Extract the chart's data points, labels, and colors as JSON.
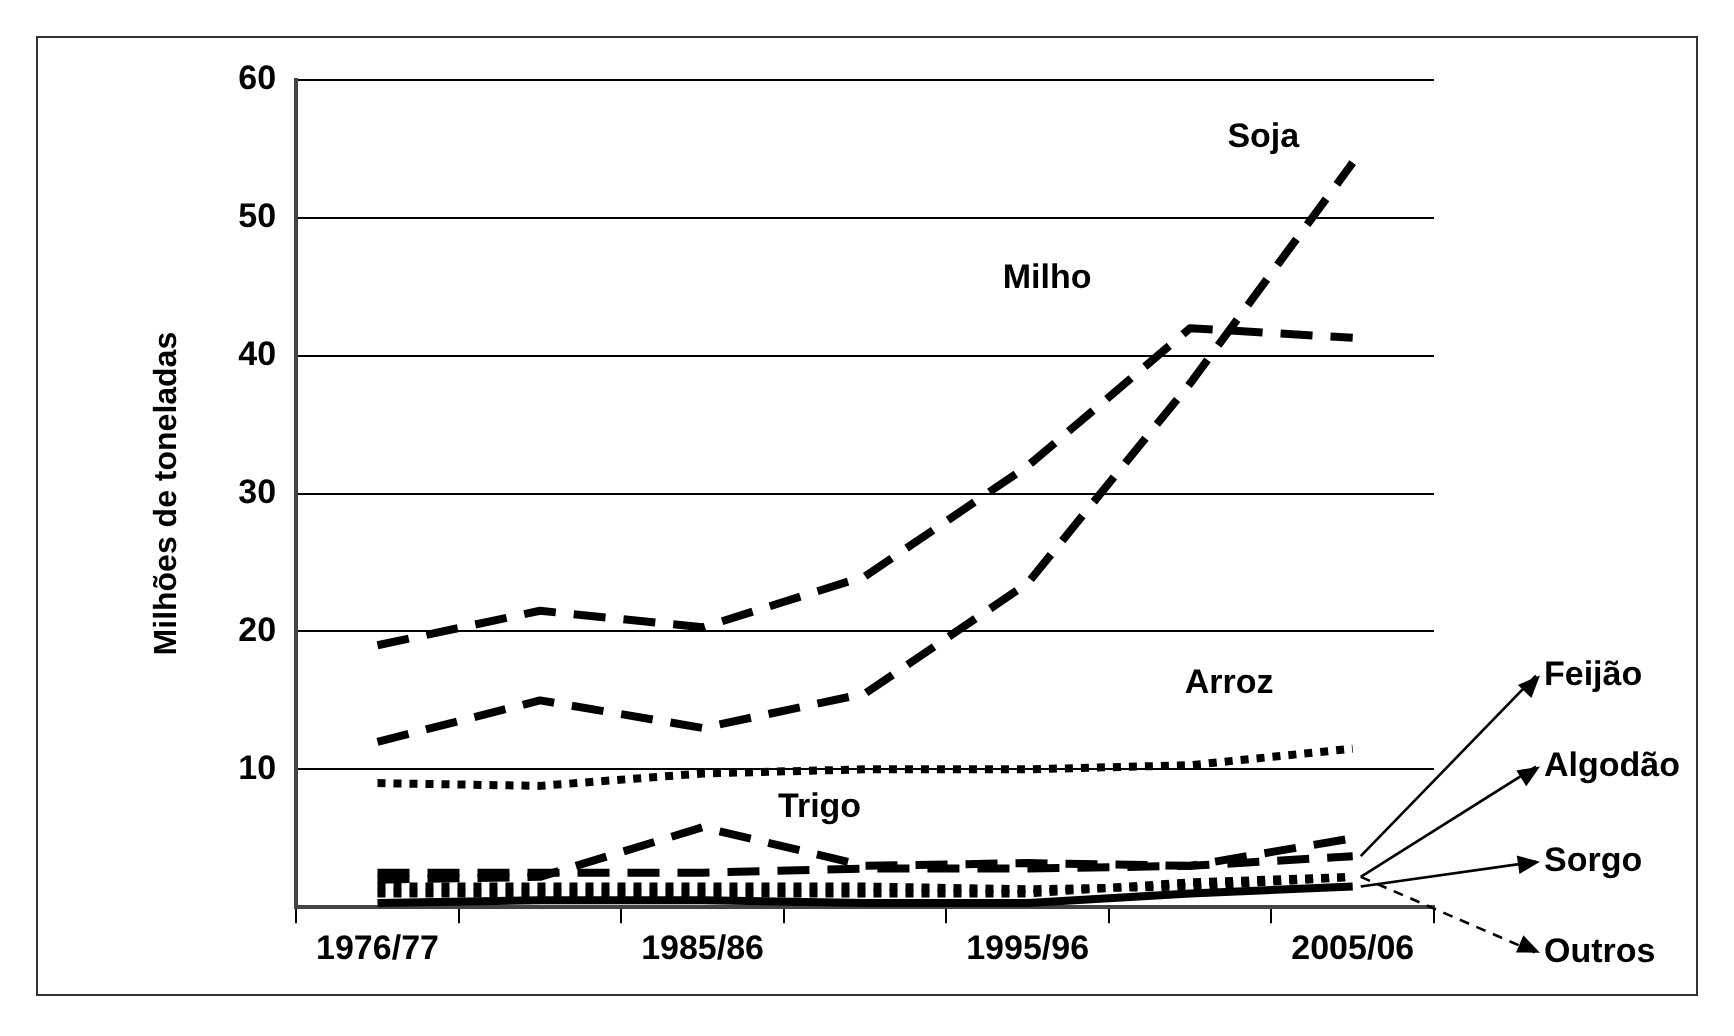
{
  "chart_data": {
    "type": "line",
    "ylabel": "Milhões de toneladas",
    "categories": [
      "1976/77",
      null,
      "1985/86",
      null,
      "1995/96",
      null,
      "2005/06"
    ],
    "ylim": [
      0,
      60
    ],
    "yticks": [
      {
        "value": 0,
        "label": null
      },
      10,
      20,
      30,
      40,
      50,
      60
    ],
    "grid": "y",
    "legend": "right",
    "marker": "none",
    "series": [
      {
        "name": "Soja",
        "color": "#000000",
        "line_style": "dashed",
        "values": [
          12,
          15,
          13,
          15.5,
          23.5,
          38,
          54
        ]
      },
      {
        "name": "Milho",
        "color": "#000000",
        "line_style": "dashed",
        "values": [
          19,
          21.5,
          20.3,
          24,
          32,
          42,
          41.3
        ]
      },
      {
        "name": "Arroz",
        "color": "#000000",
        "line_style": "dotted",
        "values": [
          9,
          8.8,
          9.7,
          10,
          10,
          10.3,
          11.5
        ]
      },
      {
        "name": "Trigo",
        "color": "#000000",
        "line_style": "dashed",
        "values": [
          2,
          2.2,
          5.8,
          3,
          3.2,
          3,
          5
        ]
      },
      {
        "name": "Feijão",
        "color": "#000000",
        "line_style": "dashed",
        "values": [
          2.5,
          2.5,
          2.5,
          2.8,
          2.8,
          3,
          3.7
        ]
      },
      {
        "name": "Algodão",
        "color": "#000000",
        "line_style": "dotted",
        "values": [
          1.5,
          1.5,
          1.5,
          1.5,
          1.3,
          1.5,
          2.2
        ]
      },
      {
        "name": "Sorgo",
        "color": "#000000",
        "line_style": "solid",
        "values": [
          0.3,
          0.5,
          0.5,
          0.3,
          0.3,
          1,
          1.5
        ]
      },
      {
        "name": "Outros",
        "color": "#000000",
        "line_style": "dotted",
        "values": [
          1,
          1,
          1,
          1,
          1,
          1.8,
          2.2
        ]
      }
    ]
  }
}
